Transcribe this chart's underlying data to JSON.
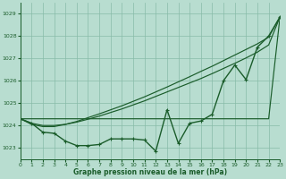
{
  "xlabel": "Graphe pression niveau de la mer (hPa)",
  "xlim": [
    0,
    23
  ],
  "ylim": [
    1022.5,
    1029.5
  ],
  "yticks": [
    1023,
    1024,
    1025,
    1026,
    1027,
    1028,
    1029
  ],
  "xticks": [
    0,
    1,
    2,
    3,
    4,
    5,
    6,
    7,
    8,
    9,
    10,
    11,
    12,
    13,
    14,
    15,
    16,
    17,
    18,
    19,
    20,
    21,
    22,
    23
  ],
  "bg_color": "#b8ddd0",
  "grid_color": "#88bba8",
  "line_color": "#1a5c2a",
  "line_width": 1.0,
  "marker": "+",
  "marker_size": 3.5,
  "hourly_pressure": [
    1024.3,
    1024.1,
    1023.7,
    1023.65,
    1023.3,
    1023.1,
    1023.1,
    1023.15,
    1023.4,
    1023.4,
    1023.4,
    1023.35,
    1022.85,
    1024.7,
    1023.2,
    1024.1,
    1024.2,
    1024.5,
    1026.0,
    1026.7,
    1026.05,
    1027.5,
    1028.0,
    1028.85
  ],
  "smooth_line1": [
    1024.3,
    1024.3,
    1024.3,
    1024.3,
    1024.3,
    1024.3,
    1024.3,
    1024.3,
    1024.3,
    1024.3,
    1024.3,
    1024.3,
    1024.3,
    1024.3,
    1024.3,
    1024.3,
    1024.3,
    1024.3,
    1024.3,
    1024.3,
    1024.3,
    1024.3,
    1024.3,
    1028.85
  ],
  "smooth_line2": [
    1024.3,
    1024.1,
    1024.0,
    1024.0,
    1024.05,
    1024.15,
    1024.28,
    1024.42,
    1024.58,
    1024.74,
    1024.92,
    1025.1,
    1025.3,
    1025.5,
    1025.7,
    1025.9,
    1026.1,
    1026.32,
    1026.55,
    1026.78,
    1027.02,
    1027.28,
    1027.6,
    1028.85
  ],
  "smooth_line3": [
    1024.3,
    1024.05,
    1023.95,
    1023.95,
    1024.05,
    1024.18,
    1024.35,
    1024.52,
    1024.7,
    1024.88,
    1025.08,
    1025.28,
    1025.5,
    1025.72,
    1025.95,
    1026.18,
    1026.42,
    1026.65,
    1026.9,
    1027.15,
    1027.4,
    1027.65,
    1027.95,
    1028.85
  ]
}
